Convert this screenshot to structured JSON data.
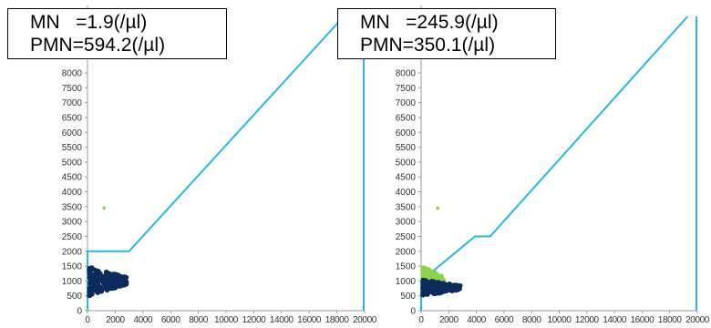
{
  "colors": {
    "gate_line": "#2bb5e0",
    "cluster_dark": "#0d2a5c",
    "cluster_green": "#8fd14f",
    "axis": "#9a9a9a",
    "tick_text": "#333333"
  },
  "chart_data": [
    {
      "type": "scatter",
      "annotation_lines": [
        "MN   =1.9(/µl)",
        "PMN=594.2(/µl)"
      ],
      "xlim": [
        0,
        20000
      ],
      "ylim": [
        0,
        8000
      ],
      "x_ticks": [
        0,
        2000,
        4000,
        6000,
        8000,
        10000,
        12000,
        14000,
        16000,
        18000,
        20000
      ],
      "y_ticks": [
        0,
        500,
        1000,
        1500,
        2000,
        2500,
        3000,
        3500,
        4000,
        4500,
        5000,
        5500,
        6000,
        6500,
        7000,
        7500,
        8000
      ],
      "gate": [
        [
          0,
          2000
        ],
        [
          3000,
          2000
        ],
        [
          18500,
          8000
        ]
      ],
      "gate_right_x": 20000,
      "series": [
        {
          "color_key": "cluster_dark",
          "cluster": {
            "x_range": [
              0,
              2700
            ],
            "y_range": [
              500,
              1500
            ]
          }
        },
        {
          "color_key": "cluster_green",
          "points": [
            [
              1200,
              3450
            ],
            [
              0,
              30
            ]
          ]
        }
      ]
    },
    {
      "type": "scatter",
      "annotation_lines": [
        "MN   =245.9(/µl)",
        "PMN=350.1(/µl)"
      ],
      "xlim": [
        0,
        20000
      ],
      "ylim": [
        0,
        8000
      ],
      "x_ticks": [
        0,
        2000,
        4000,
        6000,
        8000,
        10000,
        12000,
        14000,
        16000,
        18000,
        20000
      ],
      "y_ticks": [
        0,
        500,
        1000,
        1500,
        2000,
        2500,
        3000,
        3500,
        4000,
        4500,
        5000,
        5500,
        6000,
        6500,
        7000,
        7500,
        8000
      ],
      "gate": [
        [
          0,
          1000
        ],
        [
          3900,
          2500
        ],
        [
          5000,
          2500
        ],
        [
          19300,
          8000
        ]
      ],
      "gate_right_x": 20000,
      "series": [
        {
          "color_key": "cluster_green",
          "cluster": {
            "x_range": [
              0,
              1500
            ],
            "y_range": [
              500,
              1500
            ]
          }
        },
        {
          "color_key": "cluster_dark",
          "cluster": {
            "x_range": [
              0,
              2700
            ],
            "y_range": [
              500,
              1050
            ]
          }
        },
        {
          "color_key": "cluster_green",
          "points": [
            [
              1200,
              3450
            ]
          ]
        }
      ]
    }
  ]
}
